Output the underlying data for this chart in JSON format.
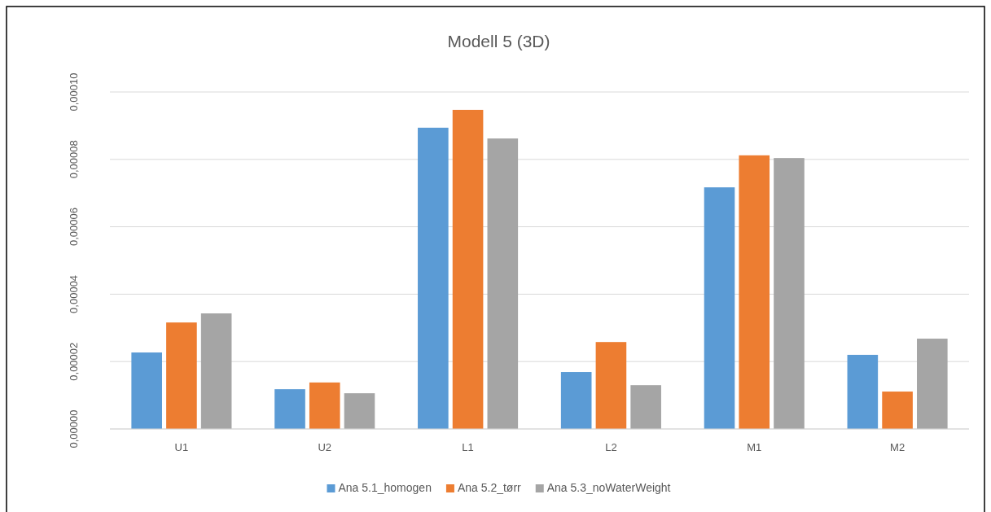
{
  "chart_data": {
    "type": "bar",
    "title": "Modell 5 (3D)",
    "categories": [
      "U1",
      "U2",
      "L1",
      "L2",
      "M1",
      "M2"
    ],
    "series": [
      {
        "name": "Ana 5.1_homogen",
        "color": "#5b9bd5",
        "values": [
          2.27e-05,
          1.18e-05,
          8.94e-05,
          1.69e-05,
          7.17e-05,
          2.2e-05
        ]
      },
      {
        "name": "Ana 5.2_tørr",
        "color": "#ed7d31",
        "values": [
          3.16e-05,
          1.38e-05,
          9.47e-05,
          2.58e-05,
          8.12e-05,
          1.11e-05
        ]
      },
      {
        "name": "Ana 5.3_noWaterWeight",
        "color": "#a5a5a5",
        "values": [
          3.43e-05,
          1.06e-05,
          8.62e-05,
          1.3e-05,
          8.04e-05,
          2.68e-05
        ]
      }
    ],
    "ylim": [
      0,
      0.0001
    ],
    "yticks": [
      {
        "value": 0,
        "label": "0,00000"
      },
      {
        "value": 2e-05,
        "label": "0,00002"
      },
      {
        "value": 4e-05,
        "label": "0,00004"
      },
      {
        "value": 6e-05,
        "label": "0,00006"
      },
      {
        "value": 8e-05,
        "label": "0,00008"
      },
      {
        "value": 0.0001,
        "label": "0,00010"
      }
    ],
    "grid": "y",
    "legend": "bottom"
  }
}
